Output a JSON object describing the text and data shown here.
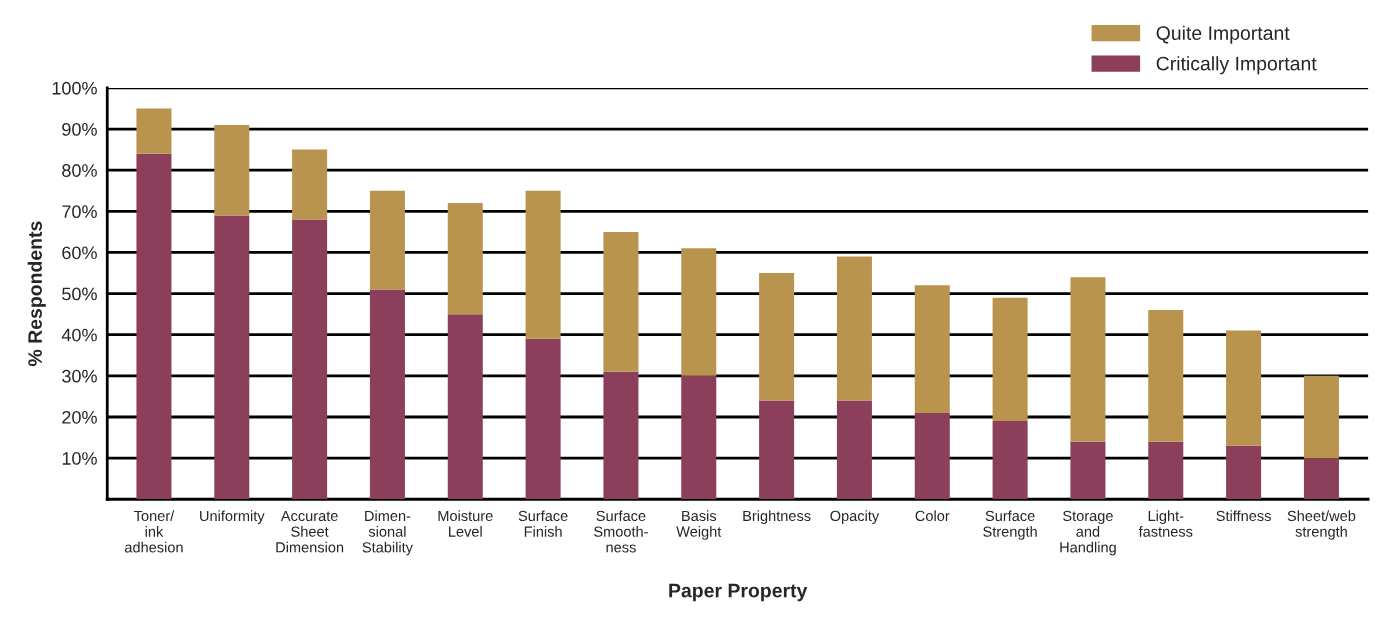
{
  "chart_data": {
    "type": "bar",
    "stacked": true,
    "xlabel": "Paper Property",
    "ylabel": "% Respondents",
    "categories": [
      "Toner/\nink\nadhesion",
      "Uniformity",
      "Accurate\nSheet\nDimension",
      "Dimen-\nsional\nStability",
      "Moisture\nLevel",
      "Surface\nFinish",
      "Surface\nSmooth-\nness",
      "Basis\nWeight",
      "Brightness",
      "Opacity",
      "Color",
      "Surface\nStrength",
      "Storage\nand\nHandling",
      "Light-\nfastness",
      "Stiffness",
      "Sheet/web\nstrength"
    ],
    "series": [
      {
        "name": "Critically Important",
        "color": "#8c3f5a",
        "values": [
          84,
          69,
          68,
          51,
          45,
          39,
          31,
          30,
          24,
          24,
          21,
          19,
          14,
          14,
          13,
          10
        ]
      },
      {
        "name": "Quite Important",
        "color": "#b9944f",
        "values": [
          11,
          22,
          17,
          24,
          27,
          36,
          34,
          31,
          31,
          35,
          31,
          30,
          40,
          32,
          28,
          20
        ]
      }
    ],
    "ylim": [
      0,
      100
    ],
    "yticks": [
      {
        "value": 10,
        "label": "10%"
      },
      {
        "value": 20,
        "label": "20%"
      },
      {
        "value": 30,
        "label": "30%"
      },
      {
        "value": 40,
        "label": "40%"
      },
      {
        "value": 50,
        "label": "50%"
      },
      {
        "value": 60,
        "label": "60%"
      },
      {
        "value": 70,
        "label": "70%"
      },
      {
        "value": 80,
        "label": "80%"
      },
      {
        "value": 90,
        "label": "90%"
      },
      {
        "value": 100,
        "label": "100%"
      }
    ],
    "grid": "y",
    "legend": "top right"
  }
}
